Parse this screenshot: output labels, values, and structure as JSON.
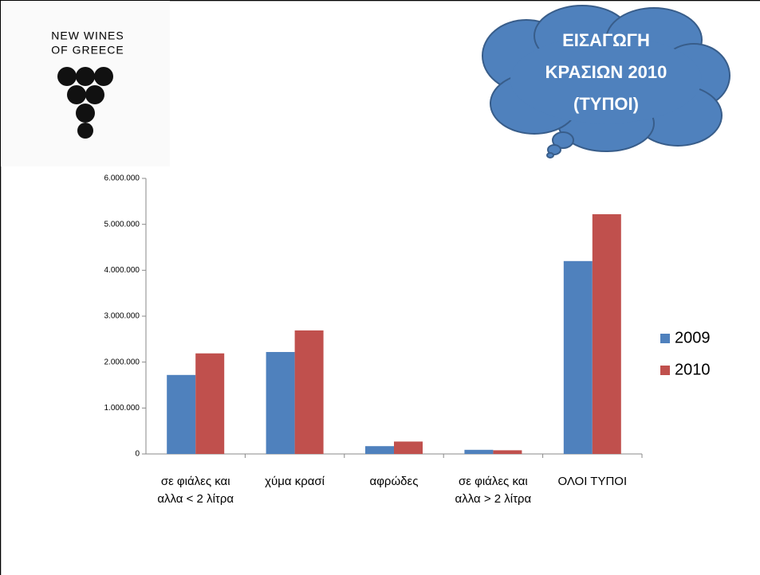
{
  "logo": {
    "lines": [
      "NEW WINES",
      "OF GREECE"
    ]
  },
  "chart_data": {
    "type": "bar",
    "title_lines": [
      "ΕΙΣΑΓΩΓΗ",
      "ΚΡΑΣΙΩΝ 2010",
      "(ΤΥΠΟΙ)"
    ],
    "categories": [
      "σε φιάλες και αλλα < 2 λίτρα",
      "χύμα κρασί",
      "αφρώδες",
      "σε φιάλες  και αλλα > 2 λίτρα",
      "ΟΛΟΙ ΤΥΠΟΙ"
    ],
    "series": [
      {
        "name": "2009",
        "color": "#4f81bd",
        "values": [
          1720000,
          2220000,
          170000,
          90000,
          4200000
        ]
      },
      {
        "name": "2010",
        "color": "#c0504d",
        "values": [
          2190000,
          2690000,
          270000,
          80000,
          5220000
        ]
      }
    ],
    "ylim": [
      0,
      6000000
    ],
    "yticks": [
      0,
      {
        "value": 1000000,
        "label": "1.000.000"
      },
      {
        "value": 2000000,
        "label": "2.000.000"
      },
      {
        "value": 3000000,
        "label": "3.000.000"
      },
      {
        "value": 4000000,
        "label": "4.000.000"
      },
      {
        "value": 5000000,
        "label": "5.000.000"
      },
      {
        "value": 6000000,
        "label": "6.000.000"
      }
    ],
    "grid": false,
    "legend": "right"
  }
}
